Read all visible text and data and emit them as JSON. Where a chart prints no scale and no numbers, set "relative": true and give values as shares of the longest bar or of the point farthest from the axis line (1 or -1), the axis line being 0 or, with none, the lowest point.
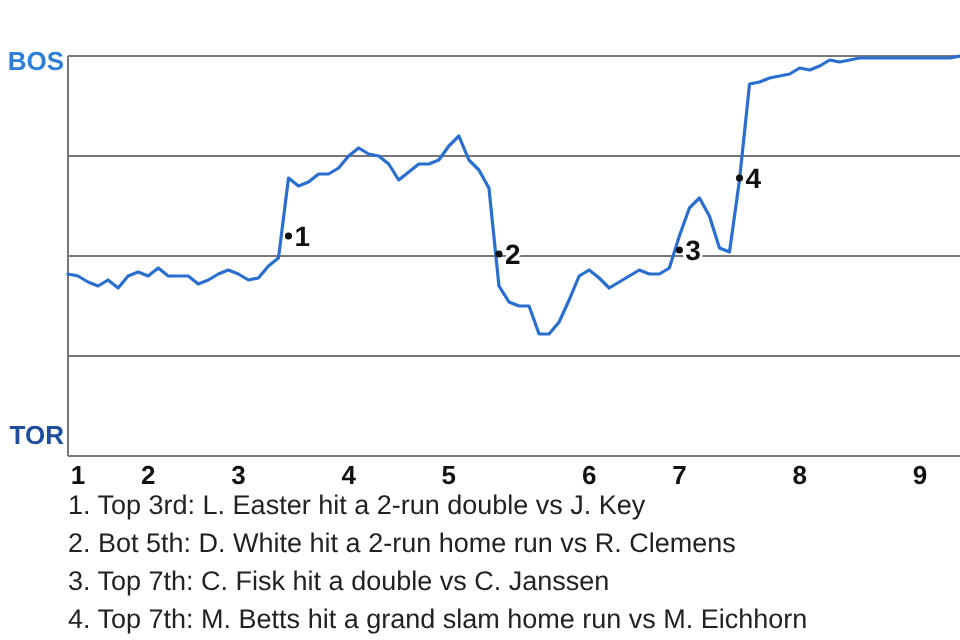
{
  "chart_data": {
    "type": "line",
    "relative": true,
    "categories": [
      null,
      "1",
      null,
      null,
      null,
      null,
      null,
      null,
      "2",
      null,
      null,
      null,
      null,
      null,
      null,
      null,
      null,
      "3",
      null,
      null,
      null,
      null,
      null,
      null,
      null,
      null,
      null,
      null,
      "4",
      null,
      null,
      null,
      null,
      null,
      null,
      null,
      null,
      null,
      "5",
      null,
      null,
      null,
      null,
      null,
      null,
      null,
      null,
      null,
      null,
      null,
      null,
      null,
      "6",
      null,
      null,
      null,
      null,
      null,
      null,
      null,
      null,
      "7",
      null,
      null,
      null,
      null,
      null,
      null,
      null,
      null,
      null,
      null,
      null,
      "8",
      null,
      null,
      null,
      null,
      null,
      null,
      null,
      null,
      null,
      null,
      null,
      "9",
      null,
      null,
      null,
      null
    ],
    "series": [
      {
        "color": "#2a6fd0",
        "values": [
          0.455,
          0.45,
          0.435,
          0.425,
          0.44,
          0.42,
          0.45,
          0.46,
          0.45,
          0.47,
          0.45,
          0.45,
          0.45,
          0.43,
          0.44,
          0.455,
          0.465,
          0.455,
          0.44,
          0.445,
          0.475,
          0.495,
          0.695,
          0.675,
          0.685,
          0.705,
          0.705,
          0.72,
          0.75,
          0.77,
          0.755,
          0.75,
          0.73,
          0.69,
          0.71,
          0.73,
          0.73,
          0.74,
          0.775,
          0.8,
          0.74,
          0.715,
          0.67,
          0.425,
          0.385,
          0.375,
          0.375,
          0.305,
          0.305,
          0.335,
          0.39,
          0.45,
          0.465,
          0.445,
          0.42,
          0.435,
          0.45,
          0.465,
          0.455,
          0.455,
          0.47,
          0.55,
          0.62,
          0.645,
          0.6,
          0.52,
          0.51,
          0.69,
          0.93,
          0.935,
          0.945,
          0.95,
          0.955,
          0.97,
          0.965,
          0.975,
          0.99,
          0.985,
          0.99,
          0.995,
          0.995,
          0.995,
          0.995,
          0.995,
          0.995,
          0.995,
          0.995,
          0.995,
          0.995,
          1
        ]
      },
      {
        "type": "scatter",
        "marker": "circle",
        "name": "1",
        "color": "#111111",
        "values": [
          null,
          null,
          null,
          null,
          null,
          null,
          null,
          null,
          null,
          null,
          null,
          null,
          null,
          null,
          null,
          null,
          null,
          null,
          null,
          null,
          null,
          null,
          0.55,
          null,
          null,
          null,
          null,
          null,
          null,
          null,
          null,
          null,
          null,
          null,
          null,
          null,
          null,
          null,
          null,
          null,
          null,
          null,
          null,
          null,
          null,
          null,
          null,
          null,
          null,
          null,
          null,
          null,
          null,
          null,
          null,
          null,
          null,
          null,
          null,
          null,
          null,
          null,
          null,
          null,
          null,
          null,
          null,
          null,
          null,
          null,
          null,
          null,
          null,
          null,
          null,
          null,
          null,
          null,
          null,
          null,
          null,
          null,
          null,
          null,
          null,
          null,
          null,
          null,
          null,
          null
        ]
      },
      {
        "type": "scatter",
        "marker": "circle",
        "name": "2",
        "color": "#111111",
        "values": [
          null,
          null,
          null,
          null,
          null,
          null,
          null,
          null,
          null,
          null,
          null,
          null,
          null,
          null,
          null,
          null,
          null,
          null,
          null,
          null,
          null,
          null,
          null,
          null,
          null,
          null,
          null,
          null,
          null,
          null,
          null,
          null,
          null,
          null,
          null,
          null,
          null,
          null,
          null,
          null,
          null,
          null,
          null,
          0.505,
          null,
          null,
          null,
          null,
          null,
          null,
          null,
          null,
          null,
          null,
          null,
          null,
          null,
          null,
          null,
          null,
          null,
          null,
          null,
          null,
          null,
          null,
          null,
          null,
          null,
          null,
          null,
          null,
          null,
          null,
          null,
          null,
          null,
          null,
          null,
          null,
          null,
          null,
          null,
          null,
          null,
          null,
          null,
          null,
          null,
          null
        ]
      },
      {
        "type": "scatter",
        "marker": "circle",
        "name": "3",
        "color": "#111111",
        "values": [
          null,
          null,
          null,
          null,
          null,
          null,
          null,
          null,
          null,
          null,
          null,
          null,
          null,
          null,
          null,
          null,
          null,
          null,
          null,
          null,
          null,
          null,
          null,
          null,
          null,
          null,
          null,
          null,
          null,
          null,
          null,
          null,
          null,
          null,
          null,
          null,
          null,
          null,
          null,
          null,
          null,
          null,
          null,
          null,
          null,
          null,
          null,
          null,
          null,
          null,
          null,
          null,
          null,
          null,
          null,
          null,
          null,
          null,
          null,
          null,
          null,
          0.515,
          null,
          null,
          null,
          null,
          null,
          null,
          null,
          null,
          null,
          null,
          null,
          null,
          null,
          null,
          null,
          null,
          null,
          null,
          null,
          null,
          null,
          null,
          null,
          null,
          null,
          null,
          null,
          null
        ]
      },
      {
        "type": "scatter",
        "marker": "circle",
        "name": "4",
        "color": "#111111",
        "values": [
          null,
          null,
          null,
          null,
          null,
          null,
          null,
          null,
          null,
          null,
          null,
          null,
          null,
          null,
          null,
          null,
          null,
          null,
          null,
          null,
          null,
          null,
          null,
          null,
          null,
          null,
          null,
          null,
          null,
          null,
          null,
          null,
          null,
          null,
          null,
          null,
          null,
          null,
          null,
          null,
          null,
          null,
          null,
          null,
          null,
          null,
          null,
          null,
          null,
          null,
          null,
          null,
          null,
          null,
          null,
          null,
          null,
          null,
          null,
          null,
          null,
          null,
          null,
          null,
          null,
          null,
          null,
          0.695,
          null,
          null,
          null,
          null,
          null,
          null,
          null,
          null,
          null,
          null,
          null,
          null,
          null,
          null,
          null,
          null,
          null,
          null,
          null,
          null,
          null,
          null
        ]
      }
    ],
    "ref_lines": [
      {
        "axis": "y",
        "value": 0.25,
        "color": "#777777"
      },
      {
        "axis": "y",
        "value": 0.5,
        "color": "#777777"
      },
      {
        "axis": "y",
        "value": 0.75,
        "color": "#777777"
      },
      {
        "axis": "y",
        "value": 1,
        "color": "#777777"
      }
    ],
    "annotations": [
      "BOS",
      "TOR",
      "1. Top 3rd: L. Easter hit a 2-run double vs J. Key",
      "2. Bot 5th: D. White hit a 2-run home run vs R. Clemens",
      "3. Top 7th: C. Fisk hit a double vs C. Janssen",
      "4. Top 7th: M. Betts hit a grand slam home run vs M. Eichhorn"
    ]
  }
}
